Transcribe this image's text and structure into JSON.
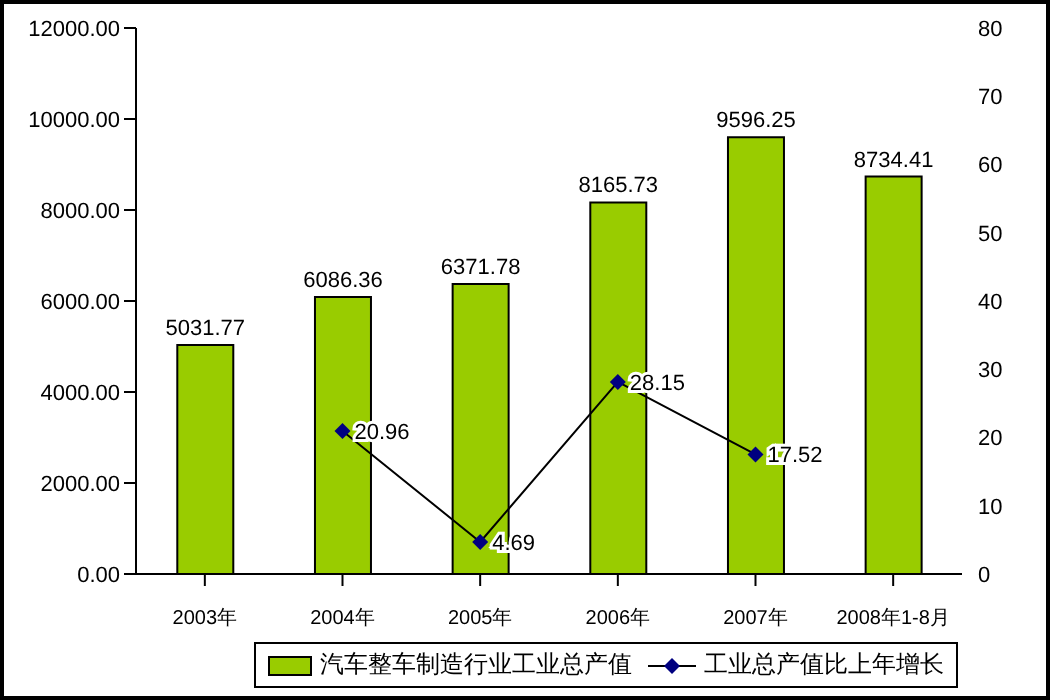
{
  "chart_data": {
    "type": "bar",
    "categories": [
      "2003年",
      "2004年",
      "2005年",
      "2006年",
      "2007年",
      "2008年1-8月"
    ],
    "series": [
      {
        "name": "汽车整车制造行业工业总产值",
        "color": "#99cc00",
        "values": [
          5031.77,
          6086.36,
          6371.78,
          8165.73,
          9596.25,
          8734.41
        ]
      },
      {
        "name": "工业总产值比上年增长",
        "type": "line",
        "axis": "y2",
        "color": "#000080",
        "marker": "diamond",
        "values": [
          null,
          20.96,
          4.69,
          28.15,
          17.52,
          null
        ]
      }
    ],
    "ylim": [
      0,
      12000
    ],
    "yticks": [
      {
        "value": 0,
        "label": "0.00"
      },
      {
        "value": 2000,
        "label": "2000.00"
      },
      {
        "value": 4000,
        "label": "4000.00"
      },
      {
        "value": 6000,
        "label": "6000.00"
      },
      {
        "value": 8000,
        "label": "8000.00"
      },
      {
        "value": 10000,
        "label": "10000.00"
      },
      {
        "value": 12000,
        "label": "12000.00"
      }
    ],
    "y2lim": [
      0,
      80
    ],
    "y2ticks": [
      0,
      10,
      20,
      30,
      40,
      50,
      60,
      70,
      80
    ],
    "data_labels": true,
    "legend": "bottom",
    "grid": false
  }
}
